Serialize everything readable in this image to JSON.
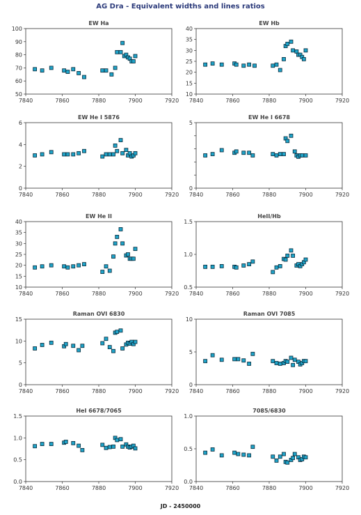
{
  "title": "AG Dra - Equivalent widths and lines ratios",
  "xlabel": "JD - 2450000",
  "colors": {
    "marker_fill": "#1fa3c8",
    "marker_edge": "#0a2a3a",
    "title": "#2b3a7a"
  },
  "chart_data": [
    {
      "type": "scatter",
      "title": "EW Ha",
      "xlim": [
        7840,
        7920
      ],
      "xticks": [
        7840,
        7860,
        7880,
        7900,
        7920
      ],
      "ylim": [
        50,
        100
      ],
      "yticks": [
        "50",
        "60",
        "70",
        "80",
        "90",
        "100"
      ],
      "grid": false,
      "x": [
        7845,
        7849,
        7854,
        7861,
        7863,
        7866,
        7869,
        7872,
        7882,
        7884,
        7887,
        7889,
        7890,
        7892,
        7893,
        7894,
        7895,
        7896,
        7897,
        7898,
        7899,
        7900
      ],
      "y": [
        69,
        68,
        70,
        68,
        67,
        69,
        66,
        63,
        68,
        68,
        65,
        70,
        82,
        82,
        89,
        79,
        80,
        78,
        77,
        75,
        75,
        79
      ]
    },
    {
      "type": "scatter",
      "title": "EW Hb",
      "xlim": [
        7840,
        7920
      ],
      "xticks": [
        7840,
        7860,
        7880,
        7900,
        7920
      ],
      "ylim": [
        10,
        40
      ],
      "yticks": [
        "10",
        "15",
        "20",
        "25",
        "30",
        "35",
        "40"
      ],
      "grid": false,
      "x": [
        7845,
        7849,
        7854,
        7861,
        7862,
        7866,
        7869,
        7872,
        7882,
        7884,
        7886,
        7888,
        7889,
        7890,
        7892,
        7893,
        7895,
        7896,
        7897,
        7898,
        7899,
        7900
      ],
      "y": [
        23.5,
        24,
        23.5,
        24,
        23.5,
        23,
        23.5,
        23,
        23,
        23.5,
        21,
        26,
        32,
        33,
        34,
        30,
        29.5,
        28,
        28,
        27,
        26,
        30
      ]
    },
    {
      "type": "scatter",
      "title": "EW He I 5876",
      "xlim": [
        7840,
        7920
      ],
      "xticks": [
        7840,
        7860,
        7880,
        7900,
        7920
      ],
      "ylim": [
        0,
        6
      ],
      "yticks": [
        "0",
        "2",
        "4",
        "6"
      ],
      "grid": false,
      "x": [
        7845,
        7849,
        7854,
        7861,
        7863,
        7866,
        7869,
        7872,
        7882,
        7884,
        7886,
        7888,
        7889,
        7890,
        7892,
        7893,
        7895,
        7896,
        7897,
        7898,
        7899,
        7900
      ],
      "y": [
        3,
        3.1,
        3.3,
        3.1,
        3.1,
        3.1,
        3.2,
        3.4,
        2.9,
        3.1,
        3.1,
        3.1,
        3.9,
        3.4,
        4.4,
        3.2,
        3.5,
        3.0,
        3.2,
        2.9,
        3.0,
        3.2
      ]
    },
    {
      "type": "scatter",
      "title": "EW He I 6678",
      "xlim": [
        7840,
        7920
      ],
      "xticks": [
        7840,
        7860,
        7880,
        7900,
        7920
      ],
      "ylim": [
        0,
        5
      ],
      "yticks": [
        "0",
        "",
        "",
        "",
        "",
        "5"
      ],
      "grid": false,
      "x": [
        7845,
        7849,
        7854,
        7861,
        7862,
        7866,
        7869,
        7871,
        7882,
        7884,
        7886,
        7888,
        7889,
        7890,
        7892,
        7894,
        7895,
        7896,
        7897,
        7898,
        7900
      ],
      "y": [
        2.5,
        2.6,
        2.9,
        2.7,
        2.8,
        2.7,
        2.7,
        2.5,
        2.6,
        2.5,
        2.6,
        2.6,
        3.8,
        3.6,
        4.0,
        2.8,
        2.5,
        2.4,
        2.5,
        2.5,
        2.5
      ]
    },
    {
      "type": "scatter",
      "title": "EW He II",
      "xlim": [
        7840,
        7920
      ],
      "xticks": [
        7840,
        7860,
        7880,
        7900,
        7920
      ],
      "ylim": [
        10,
        40
      ],
      "yticks": [
        "10",
        "15",
        "20",
        "25",
        "30",
        "35",
        "40"
      ],
      "grid": false,
      "x": [
        7845,
        7849,
        7854,
        7861,
        7863,
        7866,
        7869,
        7872,
        7882,
        7884,
        7886,
        7888,
        7889,
        7890,
        7892,
        7893,
        7895,
        7896,
        7897,
        7898,
        7899,
        7900
      ],
      "y": [
        19,
        19.5,
        20,
        19.5,
        19,
        19.5,
        20,
        20.5,
        17,
        19.5,
        17.5,
        24,
        30,
        33,
        36.5,
        30,
        24.5,
        25,
        23,
        23,
        23,
        27.5
      ]
    },
    {
      "type": "scatter",
      "title": "HeII/Hb",
      "xlim": [
        7840,
        7920
      ],
      "xticks": [
        7840,
        7860,
        7880,
        7900,
        7920
      ],
      "ylim": [
        0.5,
        1.5
      ],
      "yticks": [
        "0.5",
        "1.0",
        "1.5"
      ],
      "grid": false,
      "x": [
        7845,
        7849,
        7854,
        7861,
        7862,
        7866,
        7869,
        7871,
        7882,
        7884,
        7886,
        7888,
        7889,
        7890,
        7892,
        7893,
        7895,
        7896,
        7897,
        7898,
        7899,
        7900
      ],
      "y": [
        0.81,
        0.81,
        0.82,
        0.81,
        0.8,
        0.83,
        0.85,
        0.89,
        0.73,
        0.8,
        0.82,
        0.93,
        0.92,
        0.98,
        1.06,
        0.98,
        0.83,
        0.85,
        0.82,
        0.85,
        0.88,
        0.92
      ]
    },
    {
      "type": "scatter",
      "title": "Raman OVI 6830",
      "xlim": [
        7840,
        7920
      ],
      "xticks": [
        7840,
        7860,
        7880,
        7900,
        7920
      ],
      "ylim": [
        0,
        15
      ],
      "yticks": [
        "0",
        "5",
        "10",
        "15"
      ],
      "grid": false,
      "x": [
        7845,
        7849,
        7854,
        7861,
        7862,
        7866,
        7869,
        7871,
        7882,
        7884,
        7886,
        7888,
        7889,
        7890,
        7892,
        7893,
        7895,
        7896,
        7897,
        7898,
        7899,
        7900
      ],
      "y": [
        8.3,
        9.1,
        9.6,
        8.8,
        9.3,
        8.9,
        7.9,
        8.9,
        9.5,
        10.5,
        8.6,
        7.7,
        11.9,
        12.1,
        12.4,
        8.3,
        9.2,
        9.6,
        9.4,
        9.8,
        9.3,
        9.8
      ]
    },
    {
      "type": "scatter",
      "title": "Raman OVI 7085",
      "xlim": [
        7840,
        7920
      ],
      "xticks": [
        7840,
        7860,
        7880,
        7900,
        7920
      ],
      "ylim": [
        0,
        10
      ],
      "yticks": [
        "0",
        "5",
        "10"
      ],
      "grid": false,
      "x": [
        7845,
        7849,
        7854,
        7861,
        7863,
        7866,
        7869,
        7871,
        7882,
        7884,
        7886,
        7888,
        7889,
        7890,
        7892,
        7893,
        7894,
        7896,
        7897,
        7898,
        7899,
        7900
      ],
      "y": [
        3.6,
        4.5,
        3.8,
        3.9,
        3.9,
        3.7,
        3.2,
        4.7,
        3.6,
        3.3,
        3.2,
        3.3,
        3.6,
        3.5,
        4.1,
        3.0,
        3.8,
        3.5,
        3.1,
        3.3,
        3.6,
        3.6
      ]
    },
    {
      "type": "scatter",
      "title": "HeI 6678/7065",
      "xlim": [
        7840,
        7920
      ],
      "xticks": [
        7840,
        7860,
        7880,
        7900,
        7920
      ],
      "ylim": [
        0,
        1.5
      ],
      "yticks": [
        "0.0",
        "0.5",
        "1.0",
        "1.5"
      ],
      "grid": false,
      "x": [
        7845,
        7849,
        7854,
        7861,
        7862,
        7866,
        7869,
        7871,
        7882,
        7884,
        7886,
        7888,
        7889,
        7890,
        7892,
        7893,
        7895,
        7896,
        7897,
        7898,
        7899,
        7900
      ],
      "y": [
        0.81,
        0.86,
        0.86,
        0.89,
        0.91,
        0.88,
        0.82,
        0.72,
        0.84,
        0.77,
        0.79,
        0.8,
        1.0,
        0.95,
        0.97,
        0.8,
        0.85,
        0.8,
        0.78,
        0.8,
        0.82,
        0.76
      ]
    },
    {
      "type": "scatter",
      "title": "7085/6830",
      "xlim": [
        7840,
        7920
      ],
      "xticks": [
        7840,
        7860,
        7880,
        7900,
        7920
      ],
      "ylim": [
        0,
        1.0
      ],
      "yticks": [
        "0.0",
        "0.5",
        "1.0"
      ],
      "grid": false,
      "x": [
        7845,
        7849,
        7854,
        7861,
        7863,
        7866,
        7869,
        7871,
        7882,
        7884,
        7886,
        7888,
        7889,
        7890,
        7892,
        7893,
        7894,
        7896,
        7897,
        7898,
        7899,
        7900
      ],
      "y": [
        0.44,
        0.49,
        0.4,
        0.44,
        0.42,
        0.41,
        0.4,
        0.53,
        0.38,
        0.32,
        0.38,
        0.42,
        0.3,
        0.29,
        0.33,
        0.36,
        0.42,
        0.37,
        0.33,
        0.34,
        0.38,
        0.37
      ]
    }
  ]
}
